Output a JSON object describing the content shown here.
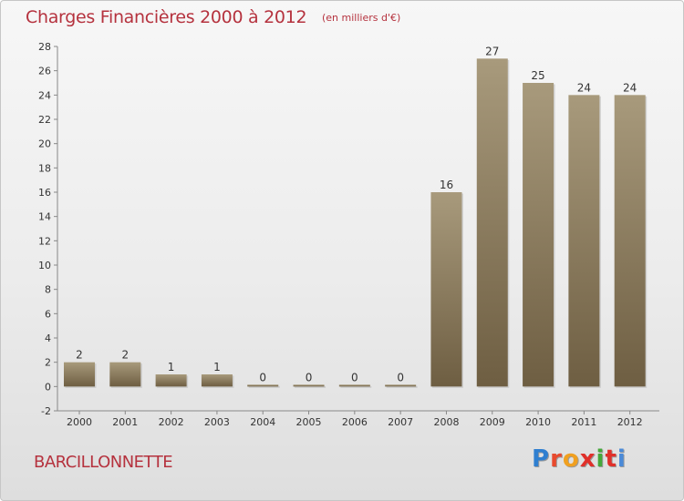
{
  "header": {
    "title": "Charges Financières 2000 à 2012",
    "subtitle": "(en milliers d'€)"
  },
  "footer": {
    "commune": "BARCILLONNETTE",
    "logo": "Proxiti",
    "logo_colors": [
      "#2f7fd0",
      "#e84a2e",
      "#f0a020",
      "#e0302a",
      "#45a83a",
      "#e0302a",
      "#4a8ad8"
    ]
  },
  "colors": {
    "title": "#b5323e",
    "bar_top": "#a89a7c",
    "bar_bottom": "#6e5e42",
    "axis": "#888888"
  },
  "chart_data": {
    "type": "bar",
    "title": "Charges Financières 2000 à 2012",
    "subtitle": "(en milliers d'€)",
    "categories": [
      "2000",
      "2001",
      "2002",
      "2003",
      "2004",
      "2005",
      "2006",
      "2007",
      "2008",
      "2009",
      "2010",
      "2011",
      "2012"
    ],
    "values": [
      2,
      2,
      1,
      1,
      0,
      0,
      0,
      0,
      16,
      27,
      25,
      24,
      24
    ],
    "ylim": [
      -2,
      28
    ],
    "yticks": [
      -2,
      0,
      2,
      4,
      6,
      8,
      10,
      12,
      14,
      16,
      18,
      20,
      22,
      24,
      26,
      28
    ],
    "grid": false,
    "legend": "none"
  }
}
